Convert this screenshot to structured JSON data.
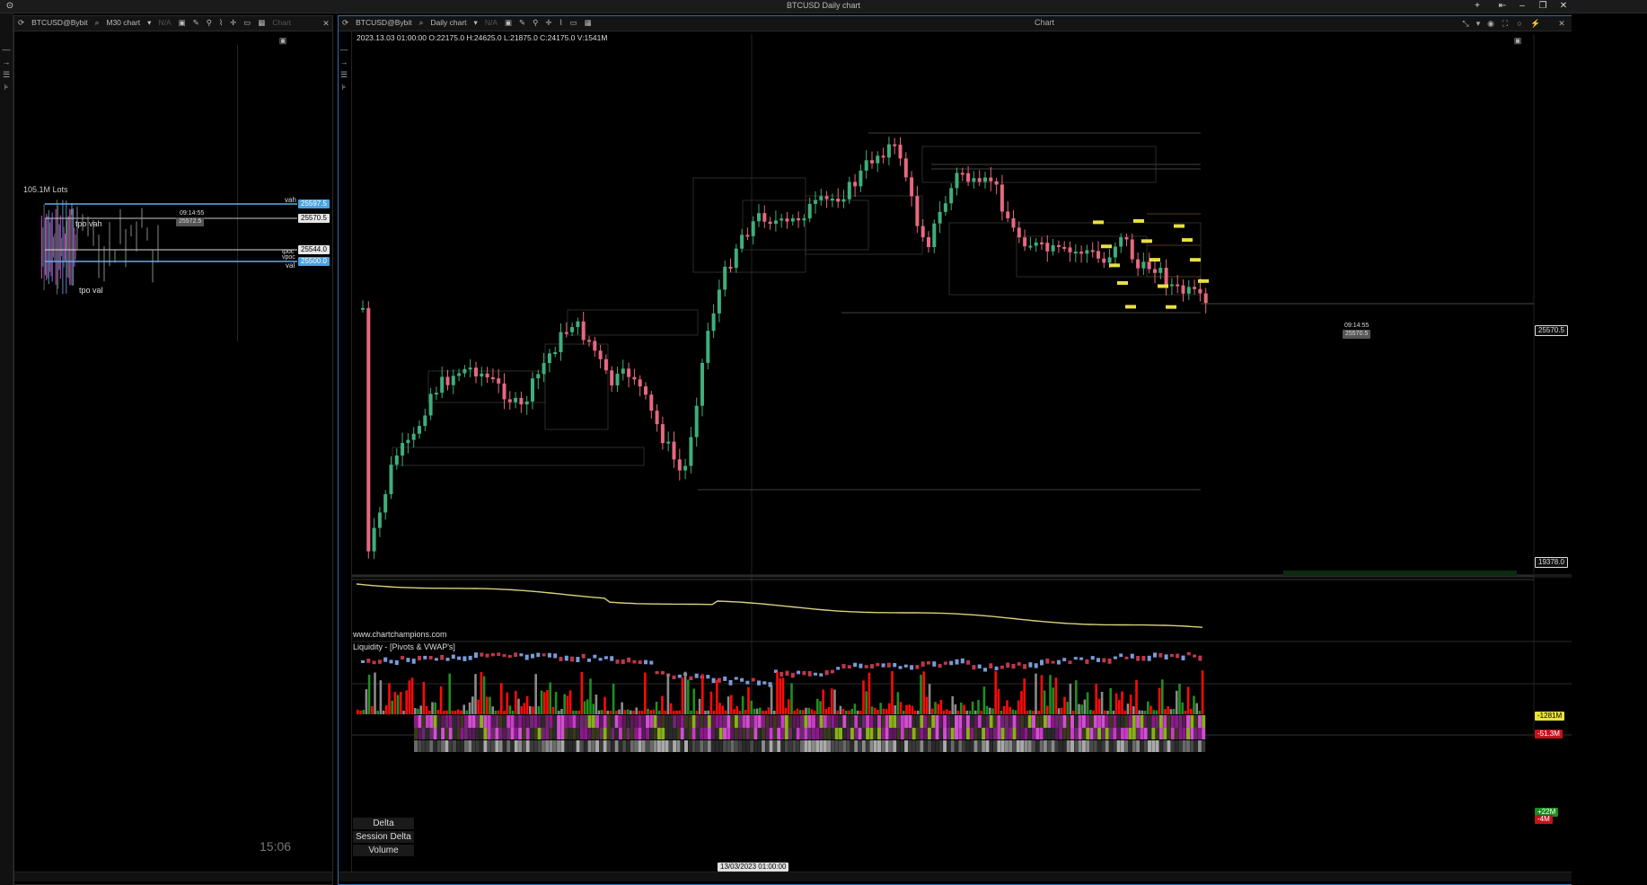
{
  "window": {
    "title": "BTCUSD Daily chart",
    "controls": [
      "+",
      "⇤",
      "–",
      "❐",
      "✕"
    ]
  },
  "left_panel": {
    "toolbar": {
      "symbol": "BTCUSD@Bybit",
      "timeframe": "M30 chart",
      "na": "N/A",
      "chart_label": "Chart"
    },
    "profile_title": "105.1M Lots",
    "labels": {
      "tpo_vah": "tpo vah",
      "tpo_val": "tpo val",
      "time": "09:14:55",
      "vah": "vah",
      "tpoc": "tpoc",
      "vpoc": "vpoc",
      "val": "val"
    },
    "price_tags": {
      "vah": "25597.5",
      "current": "25570.5",
      "time_price": "25572.5",
      "poc": "25544.0",
      "val": "25500.0"
    },
    "clock": "15:06"
  },
  "main_panel": {
    "toolbar": {
      "symbol": "BTCUSD@Bybit",
      "timeframe": "Daily chart",
      "na": "N/A",
      "chart_label": "Chart"
    },
    "ohlc": "2023.13.03 01:00:00 O:22175.0 H:24625.0 L:21875.0 C:24175.0 V:1541M",
    "watermark": "www.chartchampions.com",
    "indicator_title": "Liquidity - [Pivots & VWAP's]",
    "price_tags": {
      "current": "25570.5",
      "crosshair": "19378.0",
      "time": "09:14:55",
      "last": "25570.5"
    },
    "indicator_tags": {
      "liquidity": "-1281M",
      "delta": "-51.3M",
      "vol_up": "+22M",
      "vol_down": "-4M"
    },
    "bottom_labels": [
      "Delta",
      "Session Delta",
      "Volume"
    ],
    "crosshair_date": "13/03/2023 01:00:00"
  },
  "colors": {
    "up": "#3fae7a",
    "down": "#e6697e",
    "profile_blue": "#5ab0e8",
    "liquidity_line": "#d7d27a",
    "vol_red": "#ff0a0a",
    "vol_green": "#1f8f1f",
    "vol_gray": "#8a8a8a"
  }
}
